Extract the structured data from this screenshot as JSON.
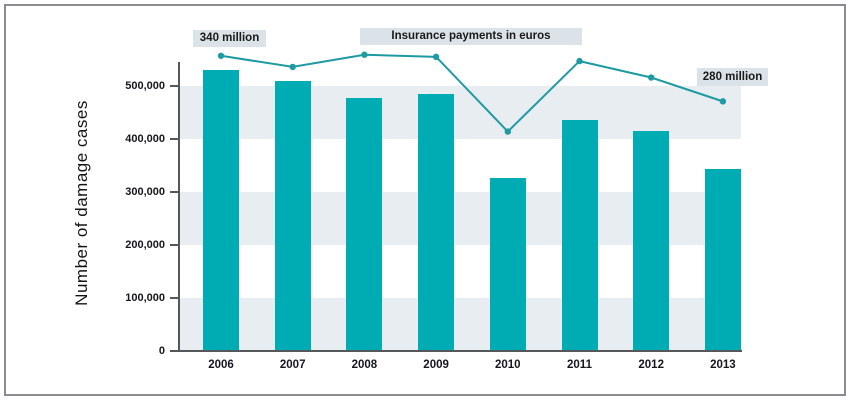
{
  "figure": {
    "ylabel": "Number of damage cases"
  },
  "chart_data": {
    "type": "bar",
    "title": "",
    "xlabel": "",
    "ylabel": "Number of damage cases",
    "categories": [
      "2006",
      "2007",
      "2008",
      "2009",
      "2010",
      "2011",
      "2012",
      "2013"
    ],
    "series": [
      {
        "name": "Number of damage cases",
        "type": "bar",
        "values": [
          530000,
          510000,
          478000,
          484000,
          327000,
          436000,
          415000,
          344000
        ]
      },
      {
        "name": "Insurance payments in euros",
        "type": "line",
        "note": "secondary series drawn without its own axis; only endpoints labeled",
        "plotted_values_on_left_axis": [
          557000,
          536000,
          559000,
          555000,
          414000,
          547000,
          516000,
          471000
        ],
        "endpoint_labels": {
          "2006": "340 million",
          "2013": "280 million"
        }
      }
    ],
    "ylim": [
      0,
      568000
    ],
    "yticks": [
      {
        "value": 0,
        "label": "0"
      },
      {
        "value": 100000,
        "label": "100,000"
      },
      {
        "value": 200000,
        "label": "200,000"
      },
      {
        "value": 300000,
        "label": "300,000"
      },
      {
        "value": 400000,
        "label": "400,000"
      },
      {
        "value": 500000,
        "label": "500,000"
      }
    ],
    "bands": [
      [
        0,
        100000
      ],
      [
        200000,
        300000
      ],
      [
        400000,
        500000
      ]
    ],
    "grid": "off",
    "legend": "none",
    "annotations": [
      {
        "id": "anno-340",
        "text": "340 million"
      },
      {
        "id": "anno-insurance",
        "text": "Insurance payments in euros"
      },
      {
        "id": "anno-280",
        "text": "280 million"
      }
    ],
    "colors": {
      "bar": "#00acb4",
      "line": "#1e9aa2",
      "marker": "#1e9aa2",
      "band": "#e8edf1",
      "annotation_box": "#dbe2e8",
      "axis": "#55585a",
      "text": "#16161e",
      "frame_border": "#8a8d8f"
    }
  }
}
